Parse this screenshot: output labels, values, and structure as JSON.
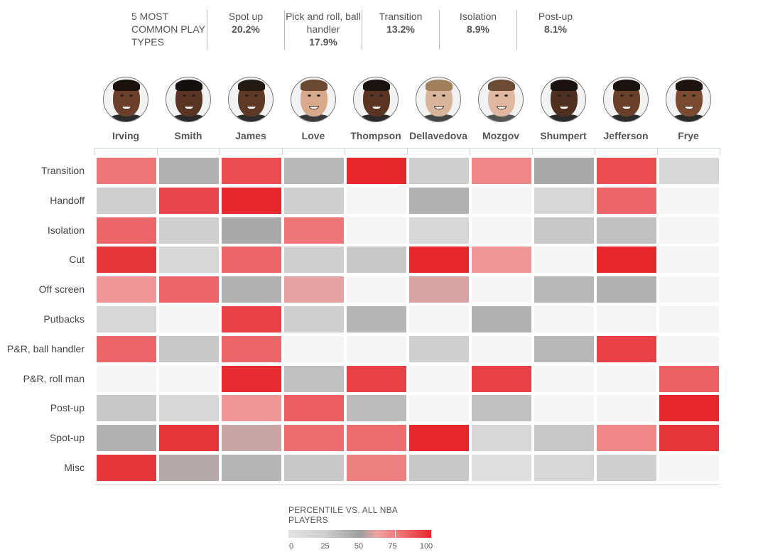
{
  "summary": {
    "intro": "5 MOST COMMON PLAY TYPES",
    "items": [
      {
        "label": "Spot up",
        "pct": "20.2%"
      },
      {
        "label": "Pick and roll, ball handler",
        "pct": "17.9%"
      },
      {
        "label": "Transition",
        "pct": "13.2%"
      },
      {
        "label": "Isolation",
        "pct": "8.9%"
      },
      {
        "label": "Post-up",
        "pct": "8.1%"
      }
    ]
  },
  "chart_data": {
    "type": "heatmap",
    "columns": [
      "Irving",
      "Smith",
      "James",
      "Love",
      "Thompson",
      "Dellavedova",
      "Mozgov",
      "Shumpert",
      "Jefferson",
      "Frye"
    ],
    "rows": [
      "Transition",
      "Handoff",
      "Isolation",
      "Cut",
      "Off screen",
      "Putbacks",
      "P&R, ball handler",
      "P&R, roll man",
      "Post-up",
      "Spot-up",
      "Misc"
    ],
    "values": [
      [
        75,
        45,
        88,
        40,
        100,
        25,
        70,
        50,
        88,
        20
      ],
      [
        25,
        90,
        100,
        25,
        0,
        45,
        0,
        20,
        80,
        0
      ],
      [
        80,
        25,
        50,
        75,
        0,
        20,
        0,
        30,
        35,
        0
      ],
      [
        95,
        20,
        80,
        25,
        30,
        100,
        65,
        0,
        100,
        0
      ],
      [
        65,
        80,
        45,
        60,
        0,
        58,
        0,
        40,
        45,
        0
      ],
      [
        20,
        0,
        92,
        25,
        42,
        0,
        45,
        0,
        0,
        0
      ],
      [
        80,
        30,
        80,
        0,
        0,
        25,
        0,
        40,
        92,
        0
      ],
      [
        0,
        0,
        98,
        35,
        92,
        0,
        92,
        0,
        0,
        82
      ],
      [
        30,
        20,
        65,
        83,
        38,
        0,
        35,
        0,
        0,
        100
      ],
      [
        45,
        95,
        55,
        78,
        78,
        100,
        20,
        30,
        70,
        95
      ],
      [
        95,
        52,
        42,
        30,
        72,
        30,
        15,
        20,
        25,
        0
      ]
    ],
    "legend": {
      "title": "PERCENTILE VS. ALL NBA PLAYERS",
      "ticks": [
        "0",
        "25",
        "50",
        "75",
        "100"
      ],
      "range": [
        0,
        100
      ]
    }
  },
  "colors": {
    "low": "#f5f5f5",
    "mid_gray": "#a9a9a9",
    "high_red": "#e5262b"
  },
  "players": [
    {
      "name": "Irving",
      "skin": "#6b3f2a",
      "hair": "#1c120d",
      "shirt": "#2b2b2b"
    },
    {
      "name": "Smith",
      "skin": "#5b3524",
      "hair": "#151010",
      "shirt": "#2a2a2a"
    },
    {
      "name": "James",
      "skin": "#5e3a26",
      "hair": "#241a14",
      "shirt": "#2d2d2d"
    },
    {
      "name": "Love",
      "skin": "#d9a98b",
      "hair": "#6b4a33",
      "shirt": "#3a3a3a"
    },
    {
      "name": "Thompson",
      "skin": "#5a3423",
      "hair": "#1b1310",
      "shirt": "#2a2a2a"
    },
    {
      "name": "Dellavedova",
      "skin": "#d8b59a",
      "hair": "#a07f5a",
      "shirt": "#444444"
    },
    {
      "name": "Mozgov",
      "skin": "#e0b7a0",
      "hair": "#6d4c36",
      "shirt": "#555555"
    },
    {
      "name": "Shumpert",
      "skin": "#4f2f20",
      "hair": "#1a1110",
      "shirt": "#2a2a2a"
    },
    {
      "name": "Jefferson",
      "skin": "#6a402a",
      "hair": "#1b1310",
      "shirt": "#2a2a2a"
    },
    {
      "name": "Frye",
      "skin": "#7a4b31",
      "hair": "#1d1410",
      "shirt": "#2a2a2a"
    }
  ]
}
